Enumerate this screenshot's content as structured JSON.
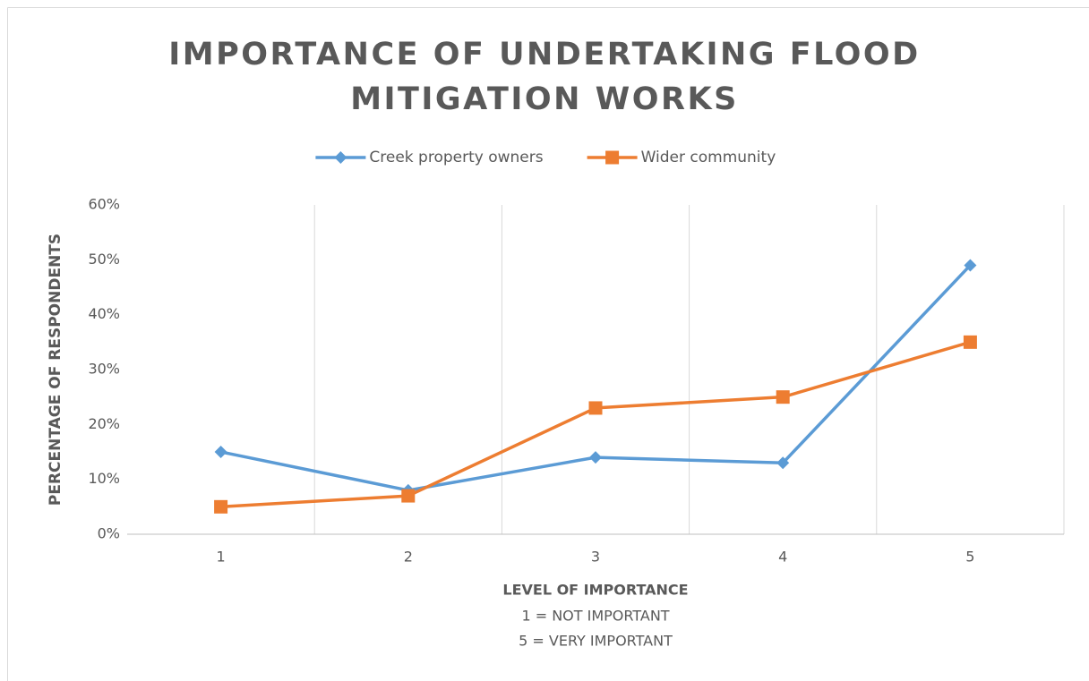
{
  "chart_data": {
    "type": "line",
    "title": "IMPORTANCE OF UNDERTAKING FLOOD MITIGATION WORKS",
    "x_label": "LEVEL OF IMPORTANCE",
    "x_label_notes": [
      "1 = NOT IMPORTANT",
      "5 = VERY IMPORTANT"
    ],
    "y_label": "PERCENTAGE OF RESPONDENTS",
    "categories": [
      "1",
      "2",
      "3",
      "4",
      "5"
    ],
    "series": [
      {
        "name": "Creek property owners",
        "color": "#5b9bd5",
        "marker": "diamond",
        "values": [
          15,
          8,
          14,
          13,
          49
        ]
      },
      {
        "name": "Wider community",
        "color": "#ed7d31",
        "marker": "square",
        "values": [
          5,
          7,
          23,
          25,
          35
        ]
      }
    ],
    "ylim": [
      0,
      60
    ],
    "yticks": [
      {
        "value": 0,
        "label": "0%"
      },
      {
        "value": 10,
        "label": "10%"
      },
      {
        "value": 20,
        "label": "20%"
      },
      {
        "value": 30,
        "label": "30%"
      },
      {
        "value": 40,
        "label": "40%"
      },
      {
        "value": 50,
        "label": "50%"
      },
      {
        "value": 60,
        "label": "60%"
      }
    ],
    "legend": "top"
  }
}
